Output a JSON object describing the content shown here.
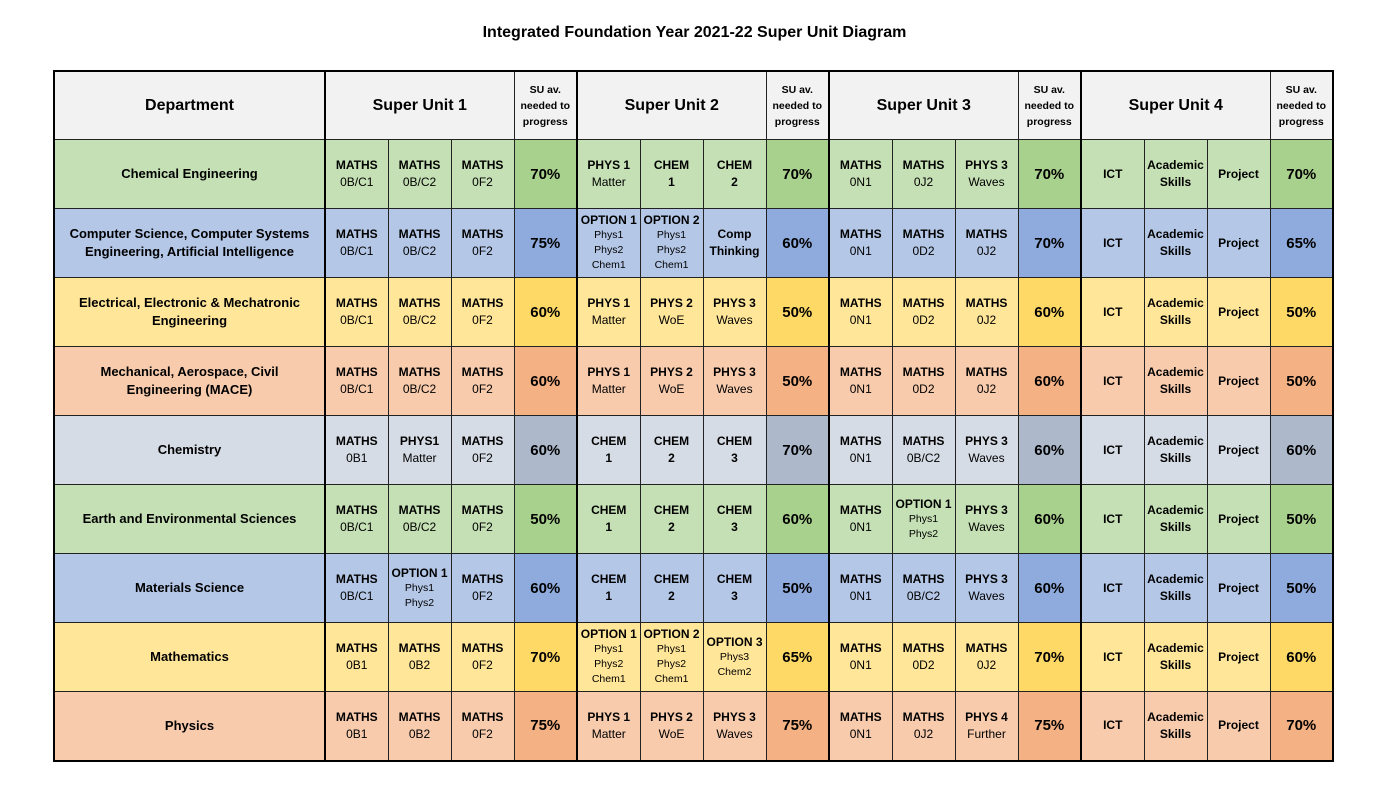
{
  "title": "Integrated Foundation Year 2021-22 Super Unit Diagram",
  "header": {
    "department": "Department",
    "su_pct_label": "SU av. needed to progress",
    "super_units": [
      "Super Unit 1",
      "Super Unit 2",
      "Super Unit 3",
      "Super Unit 4"
    ]
  },
  "colors": {
    "green": {
      "light": "#c5e0b4",
      "dark": "#a9d18e"
    },
    "blue": {
      "light": "#b4c7e7",
      "dark": "#8faadc"
    },
    "yellow": {
      "light": "#ffe699",
      "dark": "#ffd966"
    },
    "orange": {
      "light": "#f8cbad",
      "dark": "#f4b183"
    },
    "grey": {
      "light": "#d6dce5",
      "dark": "#adb9ca"
    }
  },
  "rows": [
    {
      "department": "Chemical Engineering",
      "color": "green",
      "su1": [
        {
          "code": "MATHS",
          "sub": [
            "0B/C1"
          ]
        },
        {
          "code": "MATHS",
          "sub": [
            "0B/C2"
          ]
        },
        {
          "code": "MATHS",
          "sub": [
            "0F2"
          ]
        }
      ],
      "su1_pct": "70%",
      "su2": [
        {
          "code": "PHYS 1",
          "sub": [
            "Matter"
          ]
        },
        {
          "code": "CHEM",
          "sub": [
            "1"
          ]
        },
        {
          "code": "CHEM",
          "sub": [
            "2"
          ]
        }
      ],
      "su2_pct": "70%",
      "su3": [
        {
          "code": "MATHS",
          "sub": [
            "0N1"
          ]
        },
        {
          "code": "MATHS",
          "sub": [
            "0J2"
          ]
        },
        {
          "code": "PHYS 3",
          "sub": [
            "Waves"
          ]
        }
      ],
      "su3_pct": "70%",
      "su4": [
        "ICT",
        "Academic Skills",
        "Project"
      ],
      "su4_pct": "70%"
    },
    {
      "department": "Computer Science, Computer Systems Engineering, Artificial Intelligence",
      "color": "blue",
      "su1": [
        {
          "code": "MATHS",
          "sub": [
            "0B/C1"
          ]
        },
        {
          "code": "MATHS",
          "sub": [
            "0B/C2"
          ]
        },
        {
          "code": "MATHS",
          "sub": [
            "0F2"
          ]
        }
      ],
      "su1_pct": "75%",
      "su2": [
        {
          "code": "OPTION 1",
          "sub": [
            "Phys1",
            "Phys2",
            "Chem1"
          ],
          "option": true
        },
        {
          "code": "OPTION 2",
          "sub": [
            "Phys1",
            "Phys2",
            "Chem1"
          ],
          "option": true
        },
        {
          "code": "Comp Thinking",
          "sub": []
        }
      ],
      "su2_pct": "60%",
      "su3": [
        {
          "code": "MATHS",
          "sub": [
            "0N1"
          ]
        },
        {
          "code": "MATHS",
          "sub": [
            "0D2"
          ]
        },
        {
          "code": "MATHS",
          "sub": [
            "0J2"
          ]
        }
      ],
      "su3_pct": "70%",
      "su4": [
        "ICT",
        "Academic Skills",
        "Project"
      ],
      "su4_pct": "65%"
    },
    {
      "department": "Electrical, Electronic & Mechatronic Engineering",
      "color": "yellow",
      "su1": [
        {
          "code": "MATHS",
          "sub": [
            "0B/C1"
          ]
        },
        {
          "code": "MATHS",
          "sub": [
            "0B/C2"
          ]
        },
        {
          "code": "MATHS",
          "sub": [
            "0F2"
          ]
        }
      ],
      "su1_pct": "60%",
      "su2": [
        {
          "code": "PHYS 1",
          "sub": [
            "Matter"
          ]
        },
        {
          "code": "PHYS 2",
          "sub": [
            "WoE"
          ]
        },
        {
          "code": "PHYS 3",
          "sub": [
            "Waves"
          ]
        }
      ],
      "su2_pct": "50%",
      "su3": [
        {
          "code": "MATHS",
          "sub": [
            "0N1"
          ]
        },
        {
          "code": "MATHS",
          "sub": [
            "0D2"
          ]
        },
        {
          "code": "MATHS",
          "sub": [
            "0J2"
          ]
        }
      ],
      "su3_pct": "60%",
      "su4": [
        "ICT",
        "Academic Skills",
        "Project"
      ],
      "su4_pct": "50%"
    },
    {
      "department": "Mechanical, Aerospace, Civil Engineering (MACE)",
      "color": "orange",
      "su1": [
        {
          "code": "MATHS",
          "sub": [
            "0B/C1"
          ]
        },
        {
          "code": "MATHS",
          "sub": [
            "0B/C2"
          ]
        },
        {
          "code": "MATHS",
          "sub": [
            "0F2"
          ]
        }
      ],
      "su1_pct": "60%",
      "su2": [
        {
          "code": "PHYS 1",
          "sub": [
            "Matter"
          ]
        },
        {
          "code": "PHYS 2",
          "sub": [
            "WoE"
          ]
        },
        {
          "code": "PHYS 3",
          "sub": [
            "Waves"
          ]
        }
      ],
      "su2_pct": "50%",
      "su3": [
        {
          "code": "MATHS",
          "sub": [
            "0N1"
          ]
        },
        {
          "code": "MATHS",
          "sub": [
            "0D2"
          ]
        },
        {
          "code": "MATHS",
          "sub": [
            "0J2"
          ]
        }
      ],
      "su3_pct": "60%",
      "su4": [
        "ICT",
        "Academic Skills",
        "Project"
      ],
      "su4_pct": "50%"
    },
    {
      "department": "Chemistry",
      "color": "grey",
      "su1": [
        {
          "code": "MATHS",
          "sub": [
            "0B1"
          ]
        },
        {
          "code": "PHYS1",
          "sub": [
            "Matter"
          ]
        },
        {
          "code": "MATHS",
          "sub": [
            "0F2"
          ]
        }
      ],
      "su1_pct": "60%",
      "su2": [
        {
          "code": "CHEM",
          "sub": [
            "1"
          ]
        },
        {
          "code": "CHEM",
          "sub": [
            "2"
          ]
        },
        {
          "code": "CHEM",
          "sub": [
            "3"
          ]
        }
      ],
      "su2_pct": "70%",
      "su3": [
        {
          "code": "MATHS",
          "sub": [
            "0N1"
          ]
        },
        {
          "code": "MATHS",
          "sub": [
            "0B/C2"
          ]
        },
        {
          "code": "PHYS 3",
          "sub": [
            "Waves"
          ]
        }
      ],
      "su3_pct": "60%",
      "su4": [
        "ICT",
        "Academic Skills",
        "Project"
      ],
      "su4_pct": "60%"
    },
    {
      "department": "Earth and Environmental Sciences",
      "color": "green",
      "su1": [
        {
          "code": "MATHS",
          "sub": [
            "0B/C1"
          ]
        },
        {
          "code": "MATHS",
          "sub": [
            "0B/C2"
          ]
        },
        {
          "code": "MATHS",
          "sub": [
            "0F2"
          ]
        }
      ],
      "su1_pct": "50%",
      "su2": [
        {
          "code": "CHEM",
          "sub": [
            "1"
          ]
        },
        {
          "code": "CHEM",
          "sub": [
            "2"
          ]
        },
        {
          "code": "CHEM",
          "sub": [
            "3"
          ]
        }
      ],
      "su2_pct": "60%",
      "su3": [
        {
          "code": "MATHS",
          "sub": [
            "0N1"
          ]
        },
        {
          "code": "OPTION 1",
          "sub": [
            "Phys1",
            "Phys2"
          ],
          "option": true
        },
        {
          "code": "PHYS 3",
          "sub": [
            "Waves"
          ]
        }
      ],
      "su3_pct": "60%",
      "su4": [
        "ICT",
        "Academic Skills",
        "Project"
      ],
      "su4_pct": "50%"
    },
    {
      "department": "Materials Science",
      "color": "blue",
      "su1": [
        {
          "code": "MATHS",
          "sub": [
            "0B/C1"
          ]
        },
        {
          "code": "OPTION 1",
          "sub": [
            "Phys1",
            "Phys2"
          ],
          "option": true
        },
        {
          "code": "MATHS",
          "sub": [
            "0F2"
          ]
        }
      ],
      "su1_pct": "60%",
      "su2": [
        {
          "code": "CHEM",
          "sub": [
            "1"
          ]
        },
        {
          "code": "CHEM",
          "sub": [
            "2"
          ]
        },
        {
          "code": "CHEM",
          "sub": [
            "3"
          ]
        }
      ],
      "su2_pct": "50%",
      "su3": [
        {
          "code": "MATHS",
          "sub": [
            "0N1"
          ]
        },
        {
          "code": "MATHS",
          "sub": [
            "0B/C2"
          ]
        },
        {
          "code": "PHYS 3",
          "sub": [
            "Waves"
          ]
        }
      ],
      "su3_pct": "60%",
      "su4": [
        "ICT",
        "Academic Skills",
        "Project"
      ],
      "su4_pct": "50%"
    },
    {
      "department": "Mathematics",
      "color": "yellow",
      "su1": [
        {
          "code": "MATHS",
          "sub": [
            "0B1"
          ]
        },
        {
          "code": "MATHS",
          "sub": [
            "0B2"
          ]
        },
        {
          "code": "MATHS",
          "sub": [
            "0F2"
          ]
        }
      ],
      "su1_pct": "70%",
      "su2": [
        {
          "code": "OPTION 1",
          "sub": [
            "Phys1",
            "Phys2",
            "Chem1"
          ],
          "option": true
        },
        {
          "code": "OPTION 2",
          "sub": [
            "Phys1",
            "Phys2",
            "Chem1"
          ],
          "option": true
        },
        {
          "code": "OPTION 3",
          "sub": [
            "Phys3",
            "Chem2"
          ],
          "option": true
        }
      ],
      "su2_pct": "65%",
      "su3": [
        {
          "code": "MATHS",
          "sub": [
            "0N1"
          ]
        },
        {
          "code": "MATHS",
          "sub": [
            "0D2"
          ]
        },
        {
          "code": "MATHS",
          "sub": [
            "0J2"
          ]
        }
      ],
      "su3_pct": "70%",
      "su4": [
        "ICT",
        "Academic Skills",
        "Project"
      ],
      "su4_pct": "60%"
    },
    {
      "department": "Physics",
      "color": "orange",
      "su1": [
        {
          "code": "MATHS",
          "sub": [
            "0B1"
          ]
        },
        {
          "code": "MATHS",
          "sub": [
            "0B2"
          ]
        },
        {
          "code": "MATHS",
          "sub": [
            "0F2"
          ]
        }
      ],
      "su1_pct": "75%",
      "su2": [
        {
          "code": "PHYS 1",
          "sub": [
            "Matter"
          ]
        },
        {
          "code": "PHYS 2",
          "sub": [
            "WoE"
          ]
        },
        {
          "code": "PHYS 3",
          "sub": [
            "Waves"
          ]
        }
      ],
      "su2_pct": "75%",
      "su3": [
        {
          "code": "MATHS",
          "sub": [
            "0N1"
          ]
        },
        {
          "code": "MATHS",
          "sub": [
            "0J2"
          ]
        },
        {
          "code": "PHYS 4",
          "sub": [
            "Further"
          ]
        }
      ],
      "su3_pct": "75%",
      "su4": [
        "ICT",
        "Academic Skills",
        "Project"
      ],
      "su4_pct": "70%"
    }
  ]
}
